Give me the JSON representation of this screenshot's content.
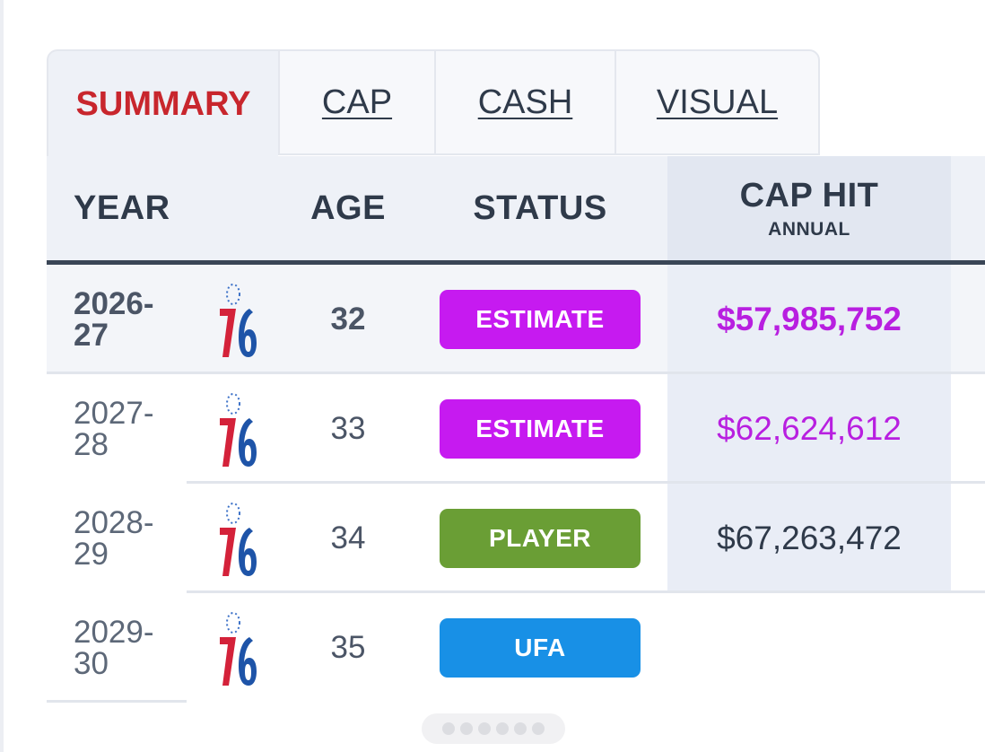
{
  "tabs": [
    {
      "label": "SUMMARY",
      "active": true
    },
    {
      "label": "CAP",
      "active": false
    },
    {
      "label": "CASH",
      "active": false
    },
    {
      "label": "VISUAL",
      "active": false
    }
  ],
  "header": {
    "year": "YEAR",
    "age": "AGE",
    "status": "STATUS",
    "cap_hit": "CAP HIT",
    "cap_hit_sub": "ANNUAL"
  },
  "rows": [
    {
      "year_a": "2026-",
      "year_b": "27",
      "team_icon": "76ers-logo-icon",
      "age": "32",
      "status": "ESTIMATE",
      "status_color": "#c61af0",
      "cap_hit": "$57,985,752",
      "cap_hit_color": "#b81fe0"
    },
    {
      "year_a": "2027-",
      "year_b": "28",
      "team_icon": "76ers-logo-icon",
      "age": "33",
      "status": "ESTIMATE",
      "status_color": "#c61af0",
      "cap_hit": "$62,624,612",
      "cap_hit_color": "#b81fe0"
    },
    {
      "year_a": "2028-",
      "year_b": "29",
      "team_icon": "76ers-logo-icon",
      "age": "34",
      "status": "PLAYER",
      "status_color": "#6a9e35",
      "cap_hit": "$67,263,472",
      "cap_hit_color": "#2f3a4a"
    },
    {
      "year_a": "2029-",
      "year_b": "30",
      "team_icon": "76ers-logo-icon",
      "age": "35",
      "status": "UFA",
      "status_color": "#1890e6",
      "cap_hit": "",
      "cap_hit_color": "#2f3a4a"
    }
  ]
}
